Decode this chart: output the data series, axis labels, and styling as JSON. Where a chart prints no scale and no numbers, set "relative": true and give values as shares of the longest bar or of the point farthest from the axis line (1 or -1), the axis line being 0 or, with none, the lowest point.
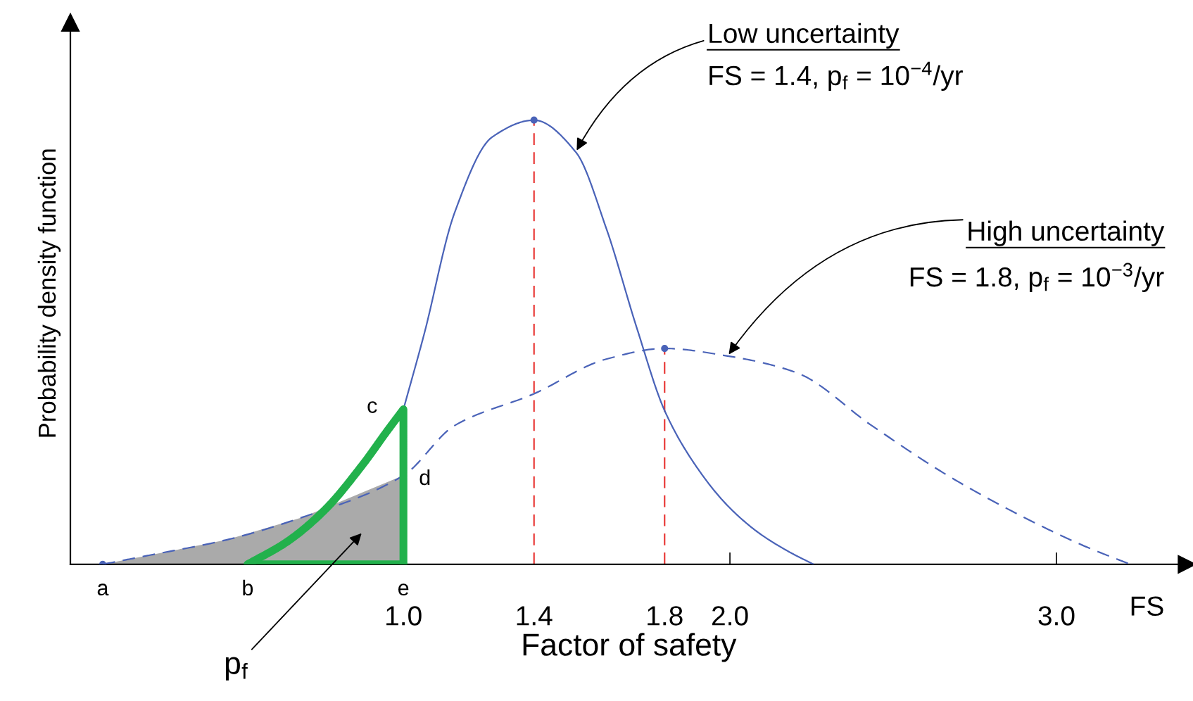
{
  "chart_data": {
    "type": "line",
    "relative": true,
    "xlabel": "Factor of safety",
    "ylabel": "Probability density function",
    "xlim": [
      -0.02,
      3.4
    ],
    "xticks": [
      {
        "value": 1.0,
        "label": "1.0"
      },
      {
        "value": 1.4,
        "label": "1.4"
      },
      {
        "value": 1.8,
        "label": "1.8"
      },
      {
        "value": 2.0,
        "label": "2.0"
      },
      {
        "value": 3.0,
        "label": "3.0"
      }
    ],
    "grid": false,
    "series": [
      {
        "type": "line",
        "color": "#4a63b8",
        "line_style": "solid",
        "x": [
          1.0,
          1.063,
          1.156,
          1.272,
          1.4,
          1.528,
          1.621,
          1.714,
          1.8,
          1.9,
          1.993,
          2.086,
          2.179,
          2.256
        ],
        "values": [
          0.349,
          0.517,
          0.79,
          0.962,
          1.0,
          0.928,
          0.757,
          0.534,
          0.346,
          0.217,
          0.132,
          0.072,
          0.029,
          0
        ]
      },
      {
        "type": "line",
        "color": "#4a63b8",
        "line_style": "dashed",
        "x": [
          0.079,
          0.226,
          0.458,
          0.691,
          1.0,
          1.156,
          1.4,
          1.621,
          1.8,
          1.993,
          2.202,
          2.435,
          2.667,
          2.9,
          3.086,
          3.226
        ],
        "values": [
          0,
          0.021,
          0.055,
          0.106,
          0.2,
          0.312,
          0.384,
          0.462,
          0.486,
          0.469,
          0.432,
          0.312,
          0.2,
          0.106,
          0.041,
          0
        ]
      },
      {
        "type": "area",
        "color": "#aaaaaa",
        "x": [
          0.079,
          0.226,
          0.458,
          0.691,
          1.0
        ],
        "values": [
          0,
          0.021,
          0.055,
          0.106,
          0.2
        ]
      },
      {
        "type": "line",
        "color": "#22b14c",
        "line_style": "solid",
        "x": [
          0.523,
          0.644,
          0.76,
          0.877,
          0.95,
          1.0,
          1.0
        ],
        "values": [
          0,
          0.051,
          0.123,
          0.226,
          0.3,
          0.349,
          0
        ]
      },
      {
        "type": "scatter",
        "color": "#4a63b8",
        "marker": "circle",
        "x": [
          0.079,
          1.4,
          1.8
        ],
        "values": [
          0,
          1.0,
          0.486
        ]
      },
      {
        "type": "line",
        "color": "#22b14c",
        "line_style": "solid",
        "x": [
          0.523,
          1.0
        ],
        "values": [
          0,
          0
        ]
      }
    ],
    "ref_lines": [
      {
        "axis": "x",
        "value": 1.4,
        "color": "#e8312f",
        "line_style": "dashed"
      },
      {
        "axis": "x",
        "value": 1.8,
        "color": "#e8312f",
        "line_style": "dashed"
      }
    ],
    "annotations": [
      {
        "text": "Low uncertainty",
        "x": 1.528,
        "y": 0.928
      },
      "FS = 1.4, p$_{f}$ = 10$^{−4}$/yr",
      {
        "text": "High uncertainty",
        "x": 1.993,
        "y": 0.469
      },
      "FS = 1.8, p$_{f}$ = 10$^{−3}$/yr",
      "p$_{f}$",
      {
        "text": "a",
        "x": 0.079,
        "y": 0
      },
      {
        "text": "b",
        "x": 0.523,
        "y": 0
      },
      {
        "text": "c",
        "x": 1.0,
        "y": 0.349
      },
      {
        "text": "d",
        "x": 1.0,
        "y": 0.2
      },
      {
        "text": "e",
        "x": 1.0,
        "y": 0
      },
      "FS"
    ]
  }
}
